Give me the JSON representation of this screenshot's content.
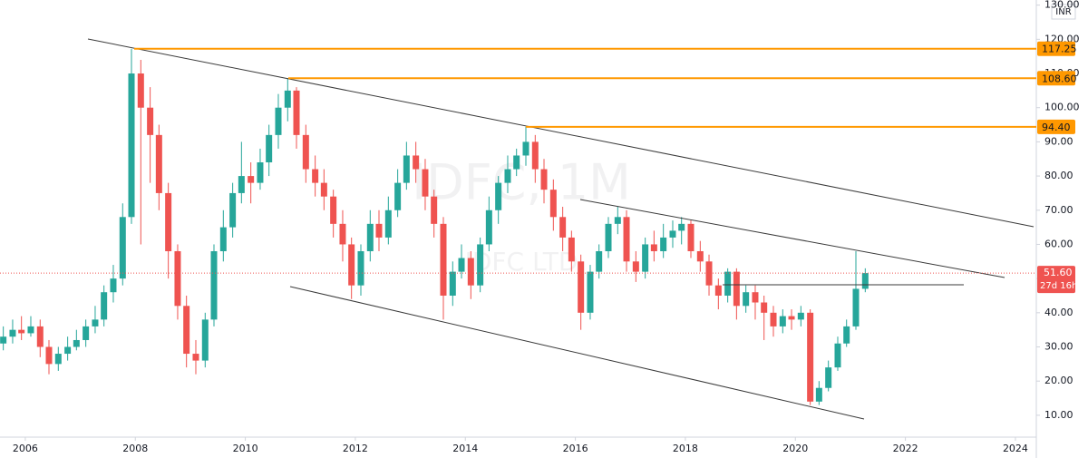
{
  "chart_data": {
    "type": "candlestick",
    "watermark": "IDFC, 1M",
    "watermark_sub": "IDFC LTD",
    "currency": "INR",
    "countdown": "27d 16h",
    "up_color": "#26a69a",
    "down_color": "#ef5350",
    "level_color": "#ff9800",
    "xlim": [
      2005.54,
      2024.38
    ],
    "xticks": [
      2006,
      2008,
      2010,
      2012,
      2014,
      2016,
      2018,
      2020,
      2022,
      2024
    ],
    "ylim": [
      3.6,
      131.5
    ],
    "yticks": [
      {
        "value": 10,
        "label": "10.00"
      },
      {
        "value": 20,
        "label": "20.00"
      },
      {
        "value": 30,
        "label": "30.00"
      },
      {
        "value": 40,
        "label": "40.00"
      },
      {
        "value": 50,
        "label": "50.00"
      },
      {
        "value": 60,
        "label": "60.00"
      },
      {
        "value": 70,
        "label": "70.00"
      },
      {
        "value": 80,
        "label": "80.00"
      },
      {
        "value": 90,
        "label": "90.00"
      },
      {
        "value": 100,
        "label": "100.00"
      },
      {
        "value": 110,
        "label": "110.00"
      },
      {
        "value": 120,
        "label": "120.00"
      },
      {
        "value": 130,
        "label": "130.00"
      }
    ],
    "levels": [
      {
        "value": 117.25,
        "label": "117.25"
      },
      {
        "value": 108.6,
        "label": "108.60"
      },
      {
        "value": 94.4,
        "label": "94.40"
      }
    ],
    "last_price": {
      "value": 51.6,
      "label": "51.60"
    },
    "x": [
      2005.6,
      2005.77,
      2005.93,
      2006.1,
      2006.27,
      2006.43,
      2006.6,
      2006.77,
      2006.93,
      2007.1,
      2007.27,
      2007.43,
      2007.6,
      2007.77,
      2007.93,
      2008.1,
      2008.27,
      2008.43,
      2008.6,
      2008.77,
      2008.93,
      2009.1,
      2009.27,
      2009.43,
      2009.6,
      2009.77,
      2009.93,
      2010.1,
      2010.27,
      2010.43,
      2010.6,
      2010.77,
      2010.93,
      2011.1,
      2011.27,
      2011.43,
      2011.6,
      2011.77,
      2011.93,
      2012.1,
      2012.27,
      2012.43,
      2012.6,
      2012.77,
      2012.93,
      2013.1,
      2013.27,
      2013.43,
      2013.6,
      2013.77,
      2013.93,
      2014.1,
      2014.27,
      2014.43,
      2014.6,
      2014.77,
      2014.93,
      2015.1,
      2015.27,
      2015.43,
      2015.6,
      2015.77,
      2015.93,
      2016.1,
      2016.27,
      2016.43,
      2016.6,
      2016.77,
      2016.93,
      2017.1,
      2017.27,
      2017.43,
      2017.6,
      2017.77,
      2017.93,
      2018.1,
      2018.27,
      2018.43,
      2018.6,
      2018.77,
      2018.93,
      2019.1,
      2019.27,
      2019.43,
      2019.6,
      2019.77,
      2019.93,
      2020.1,
      2020.27,
      2020.43,
      2020.6,
      2020.77,
      2020.93,
      2021.1,
      2021.27
    ],
    "open": [
      31,
      33,
      35,
      34,
      36,
      30,
      25,
      28,
      30,
      32,
      36,
      38,
      46,
      50,
      68,
      110,
      100,
      92,
      75,
      58,
      42,
      28,
      26,
      38,
      58,
      65,
      75,
      80,
      78,
      84,
      92,
      100,
      105,
      92,
      82,
      78,
      74,
      66,
      60,
      48,
      58,
      66,
      62,
      70,
      78,
      86,
      82,
      74,
      66,
      45,
      52,
      56,
      48,
      60,
      70,
      78,
      82,
      86,
      90,
      82,
      76,
      68,
      62,
      55,
      40,
      52,
      58,
      66,
      68,
      55,
      52,
      60,
      58,
      62,
      64,
      66,
      58,
      55,
      48,
      45,
      52,
      42,
      46,
      43,
      40,
      36,
      39,
      38,
      40,
      14,
      18,
      24,
      31,
      36,
      47
    ],
    "high": [
      36,
      38,
      39,
      39,
      38,
      32,
      30,
      33,
      35,
      38,
      42,
      48,
      54,
      72,
      117.25,
      114,
      106,
      95,
      78,
      60,
      45,
      32,
      40,
      60,
      70,
      78,
      90,
      84,
      88,
      95,
      104,
      108.6,
      106,
      95,
      86,
      82,
      76,
      70,
      62,
      60,
      70,
      70,
      74,
      82,
      90,
      90,
      85,
      76,
      68,
      55,
      60,
      58,
      62,
      74,
      80,
      86,
      88,
      94.4,
      92,
      85,
      79,
      71,
      64,
      57,
      54,
      60,
      68,
      71,
      70,
      58,
      62,
      64,
      66,
      67,
      68,
      67,
      61,
      57,
      50,
      53,
      53,
      48,
      48,
      45,
      42,
      41,
      41,
      42,
      41,
      20,
      26,
      33,
      38,
      58,
      53
    ],
    "low": [
      29,
      31,
      32,
      33,
      27,
      22,
      23,
      26,
      29,
      30,
      34,
      36,
      43,
      48,
      66,
      60,
      78,
      70,
      50,
      38,
      24,
      22,
      24,
      36,
      55,
      62,
      72,
      72,
      76,
      80,
      88,
      96,
      88,
      78,
      74,
      70,
      62,
      55,
      44,
      45,
      55,
      58,
      60,
      68,
      76,
      78,
      70,
      62,
      38,
      42,
      50,
      44,
      46,
      58,
      66,
      75,
      80,
      83,
      78,
      72,
      64,
      58,
      52,
      35,
      38,
      50,
      56,
      63,
      52,
      49,
      50,
      55,
      56,
      59,
      60,
      56,
      52,
      45,
      41,
      43,
      38,
      40,
      38,
      32,
      33,
      34,
      35,
      36,
      13,
      13,
      17,
      23,
      30,
      35,
      46
    ],
    "close": [
      33,
      35,
      34,
      36,
      30,
      25,
      28,
      30,
      32,
      36,
      38,
      46,
      50,
      68,
      110,
      100,
      92,
      75,
      58,
      42,
      28,
      26,
      38,
      58,
      65,
      75,
      80,
      78,
      84,
      92,
      100,
      105,
      92,
      82,
      78,
      74,
      66,
      60,
      48,
      58,
      66,
      62,
      70,
      78,
      86,
      82,
      74,
      66,
      45,
      52,
      56,
      48,
      60,
      70,
      78,
      82,
      86,
      90,
      82,
      76,
      68,
      62,
      55,
      40,
      52,
      58,
      66,
      68,
      55,
      52,
      60,
      58,
      62,
      64,
      66,
      58,
      55,
      48,
      45,
      52,
      42,
      46,
      43,
      40,
      36,
      39,
      38,
      40,
      14,
      18,
      24,
      31,
      36,
      47,
      51.6
    ]
  }
}
